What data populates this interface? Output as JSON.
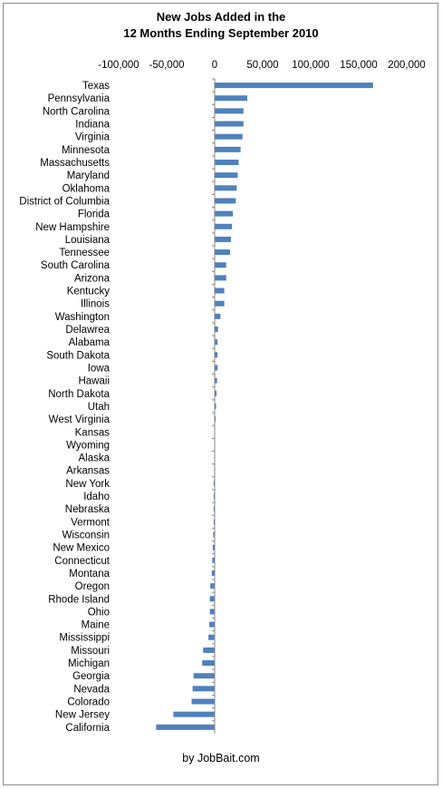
{
  "chart_data": {
    "type": "bar",
    "orientation": "horizontal",
    "title": "New Jobs Added in the\n12 Months Ending September 2010",
    "source_note": "by JobBait.com",
    "xlim": [
      -100000,
      200000
    ],
    "xticks": [
      -100000,
      -50000,
      0,
      50000,
      100000,
      150000,
      200000
    ],
    "tick_labels": [
      "-100,000",
      "-50,000",
      "0",
      "50,000",
      "100,000",
      "150,000",
      "200,000"
    ],
    "grid": false,
    "bar_color": "#4f81bd",
    "categories": [
      "Texas",
      "Pennsylvania",
      "North Carolina",
      "Indiana",
      "Virginia",
      "Minnesota",
      "Massachusetts",
      "Maryland",
      "Oklahoma",
      "District of Columbia",
      "Florida",
      "New Hampshire",
      "Louisiana",
      "Tennessee",
      "South Carolina",
      "Arizona",
      "Kentucky",
      "Illinois",
      "Washington",
      "Delawrea",
      "Alabama",
      "South Dakota",
      "Iowa",
      "Hawaii",
      "North Dakota",
      "Utah",
      "West Virginia",
      "Kansas",
      "Wyoming",
      "Alaska",
      "Arkansas",
      "New York",
      "Idaho",
      "Nebraska",
      "Vermont",
      "Wisconsin",
      "New Mexico",
      "Connecticut",
      "Montana",
      "Oregon",
      "Rhode Island",
      "Ohio",
      "Maine",
      "Mississippi",
      "Missouri",
      "Michigan",
      "Georgia",
      "Nevada",
      "Colorado",
      "New Jersey",
      "California"
    ],
    "values": [
      165000,
      34000,
      30000,
      30000,
      29000,
      27000,
      25000,
      24000,
      23000,
      22000,
      19000,
      18000,
      17000,
      16000,
      12000,
      12000,
      10000,
      10000,
      6000,
      3500,
      3000,
      3000,
      3000,
      2500,
      2000,
      1500,
      1000,
      0,
      0,
      0,
      0,
      -1000,
      -1000,
      -1000,
      -1000,
      -1500,
      -2000,
      -2500,
      -3000,
      -4500,
      -5000,
      -5000,
      -5500,
      -6500,
      -12000,
      -13000,
      -22000,
      -23000,
      -24000,
      -43000,
      -61000
    ]
  }
}
